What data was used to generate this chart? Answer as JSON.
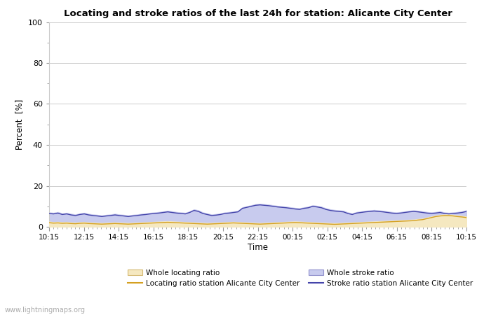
{
  "title": "Locating and stroke ratios of the last 24h for station: Alicante City Center",
  "ylabel": "Percent  [%]",
  "xlabel": "Time",
  "xlim": [
    0,
    96
  ],
  "ylim": [
    0,
    100
  ],
  "yticks_major": [
    0,
    20,
    40,
    60,
    80,
    100
  ],
  "yticks_minor": [
    10,
    30,
    50,
    70,
    90
  ],
  "xtick_labels": [
    "10:15",
    "12:15",
    "14:15",
    "16:15",
    "18:15",
    "20:15",
    "22:15",
    "00:15",
    "02:15",
    "04:15",
    "06:15",
    "08:15",
    "10:15"
  ],
  "xtick_positions": [
    0,
    8,
    16,
    24,
    32,
    40,
    48,
    56,
    64,
    72,
    80,
    88,
    96
  ],
  "background_color": "#ffffff",
  "plot_bg_color": "#ffffff",
  "grid_color": "#cccccc",
  "watermark": "www.lightningmaps.org",
  "whole_locating_color": "#f5e8c0",
  "whole_locating_edge": "#d4b870",
  "whole_stroke_color": "#c8cbee",
  "whole_stroke_edge": "#9090cc",
  "locating_line_color": "#d4a020",
  "stroke_line_color": "#4444aa",
  "legend_entries": [
    "Whole locating ratio",
    "Locating ratio station Alicante City Center",
    "Whole stroke ratio",
    "Stroke ratio station Alicante City Center"
  ],
  "whole_locating_values": [
    2.5,
    2.3,
    2.4,
    2.2,
    2.3,
    2.1,
    2.0,
    2.2,
    2.3,
    2.1,
    2.0,
    1.9,
    1.8,
    1.9,
    2.0,
    2.1,
    2.0,
    1.9,
    1.8,
    1.9,
    2.0,
    2.1,
    2.2,
    2.3,
    2.4,
    2.5,
    2.6,
    2.7,
    2.6,
    2.5,
    2.4,
    2.3,
    2.2,
    2.1,
    2.0,
    1.9,
    1.8,
    1.9,
    2.0,
    2.1,
    2.2,
    2.3,
    2.4,
    2.3,
    2.2,
    2.1,
    2.0,
    1.9,
    1.8,
    1.9,
    2.0,
    2.1,
    2.2,
    2.3,
    2.4,
    2.5,
    2.6,
    2.5,
    2.4,
    2.3,
    2.2,
    2.1,
    2.0,
    1.9,
    1.8,
    1.7,
    1.8,
    1.9,
    2.0,
    2.1,
    2.2,
    2.3,
    2.4,
    2.5,
    2.6,
    2.7,
    2.8,
    2.9,
    3.0,
    3.1,
    3.2,
    3.3,
    3.4,
    3.5,
    3.8,
    4.0,
    4.5,
    5.0,
    5.5,
    5.8,
    6.0,
    6.0,
    5.8,
    5.5,
    5.3,
    5.0
  ],
  "locating_line_values": [
    2.0,
    1.8,
    1.9,
    1.7,
    1.8,
    1.6,
    1.5,
    1.7,
    1.8,
    1.6,
    1.5,
    1.4,
    1.3,
    1.4,
    1.5,
    1.6,
    1.5,
    1.4,
    1.3,
    1.4,
    1.5,
    1.6,
    1.7,
    1.8,
    1.9,
    2.0,
    2.1,
    2.2,
    2.1,
    2.0,
    1.9,
    1.8,
    1.7,
    1.6,
    1.5,
    1.4,
    1.3,
    1.4,
    1.5,
    1.6,
    1.7,
    1.8,
    1.9,
    1.8,
    1.7,
    1.6,
    1.5,
    1.4,
    1.3,
    1.4,
    1.5,
    1.6,
    1.7,
    1.8,
    1.9,
    2.0,
    2.1,
    2.0,
    1.9,
    1.8,
    1.7,
    1.6,
    1.5,
    1.4,
    1.3,
    1.2,
    1.3,
    1.4,
    1.5,
    1.6,
    1.7,
    1.8,
    1.9,
    2.0,
    2.1,
    2.2,
    2.3,
    2.4,
    2.5,
    2.6,
    2.7,
    2.8,
    2.9,
    3.0,
    3.3,
    3.5,
    4.0,
    4.5,
    5.0,
    5.3,
    5.5,
    5.5,
    5.3,
    5.0,
    4.8,
    4.5
  ],
  "whole_stroke_values": [
    7.0,
    6.8,
    7.2,
    6.5,
    6.8,
    6.3,
    6.0,
    6.5,
    6.8,
    6.3,
    6.0,
    5.8,
    5.5,
    5.8,
    6.0,
    6.3,
    6.0,
    5.8,
    5.5,
    5.8,
    6.0,
    6.3,
    6.5,
    6.8,
    7.0,
    7.2,
    7.5,
    7.8,
    7.5,
    7.2,
    7.0,
    6.8,
    7.5,
    8.5,
    8.0,
    7.0,
    6.5,
    6.0,
    6.2,
    6.5,
    7.0,
    7.2,
    7.5,
    7.8,
    9.5,
    10.0,
    10.5,
    11.0,
    11.2,
    11.0,
    10.8,
    10.5,
    10.2,
    10.0,
    9.8,
    9.5,
    9.2,
    9.0,
    9.5,
    9.8,
    10.5,
    10.2,
    9.8,
    9.0,
    8.5,
    8.2,
    8.0,
    7.8,
    7.0,
    6.5,
    7.2,
    7.5,
    7.8,
    8.0,
    8.2,
    8.0,
    7.8,
    7.5,
    7.2,
    7.0,
    7.2,
    7.5,
    7.8,
    8.0,
    7.8,
    7.5,
    7.2,
    7.0,
    7.2,
    7.5,
    7.0,
    6.8,
    7.0,
    7.2,
    7.5,
    8.0
  ],
  "stroke_line_values": [
    6.5,
    6.3,
    6.7,
    6.0,
    6.3,
    5.8,
    5.5,
    6.0,
    6.3,
    5.8,
    5.5,
    5.3,
    5.0,
    5.3,
    5.5,
    5.8,
    5.5,
    5.3,
    5.0,
    5.3,
    5.5,
    5.8,
    6.0,
    6.3,
    6.5,
    6.7,
    7.0,
    7.3,
    7.0,
    6.7,
    6.5,
    6.3,
    7.0,
    8.0,
    7.5,
    6.5,
    6.0,
    5.5,
    5.7,
    6.0,
    6.5,
    6.7,
    7.0,
    7.3,
    9.0,
    9.5,
    10.0,
    10.5,
    10.7,
    10.5,
    10.3,
    10.0,
    9.7,
    9.5,
    9.3,
    9.0,
    8.7,
    8.5,
    9.0,
    9.3,
    10.0,
    9.7,
    9.3,
    8.5,
    8.0,
    7.7,
    7.5,
    7.3,
    6.5,
    6.0,
    6.7,
    7.0,
    7.3,
    7.5,
    7.7,
    7.5,
    7.3,
    7.0,
    6.7,
    6.5,
    6.7,
    7.0,
    7.3,
    7.5,
    7.3,
    7.0,
    6.7,
    6.5,
    6.7,
    7.0,
    6.5,
    6.3,
    6.5,
    6.7,
    7.0,
    7.5
  ]
}
